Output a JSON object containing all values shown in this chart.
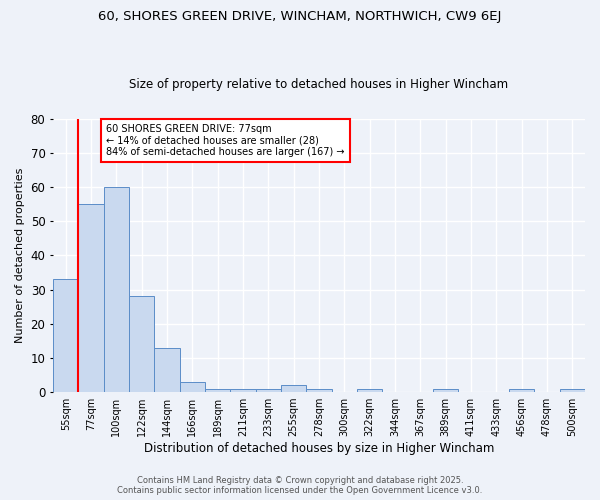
{
  "title_line1": "60, SHORES GREEN DRIVE, WINCHAM, NORTHWICH, CW9 6EJ",
  "title_line2": "Size of property relative to detached houses in Higher Wincham",
  "xlabel": "Distribution of detached houses by size in Higher Wincham",
  "ylabel": "Number of detached properties",
  "categories": [
    "55sqm",
    "77sqm",
    "100sqm",
    "122sqm",
    "144sqm",
    "166sqm",
    "189sqm",
    "211sqm",
    "233sqm",
    "255sqm",
    "278sqm",
    "300sqm",
    "322sqm",
    "344sqm",
    "367sqm",
    "389sqm",
    "411sqm",
    "433sqm",
    "456sqm",
    "478sqm",
    "500sqm"
  ],
  "values": [
    33,
    55,
    60,
    28,
    13,
    3,
    1,
    1,
    1,
    2,
    1,
    0,
    1,
    0,
    0,
    1,
    0,
    0,
    1,
    0,
    1
  ],
  "bar_color": "#c9d9ef",
  "bar_edge_color": "#5b8dc8",
  "red_line_x": 1,
  "annotation_title": "60 SHORES GREEN DRIVE: 77sqm",
  "annotation_line2": "← 14% of detached houses are smaller (28)",
  "annotation_line3": "84% of semi-detached houses are larger (167) →",
  "annotation_box_color": "white",
  "annotation_box_edge": "red",
  "ylim": [
    0,
    80
  ],
  "yticks": [
    0,
    10,
    20,
    30,
    40,
    50,
    60,
    70,
    80
  ],
  "footer_line1": "Contains HM Land Registry data © Crown copyright and database right 2025.",
  "footer_line2": "Contains public sector information licensed under the Open Government Licence v3.0.",
  "background_color": "#eef2f9",
  "grid_color": "white"
}
